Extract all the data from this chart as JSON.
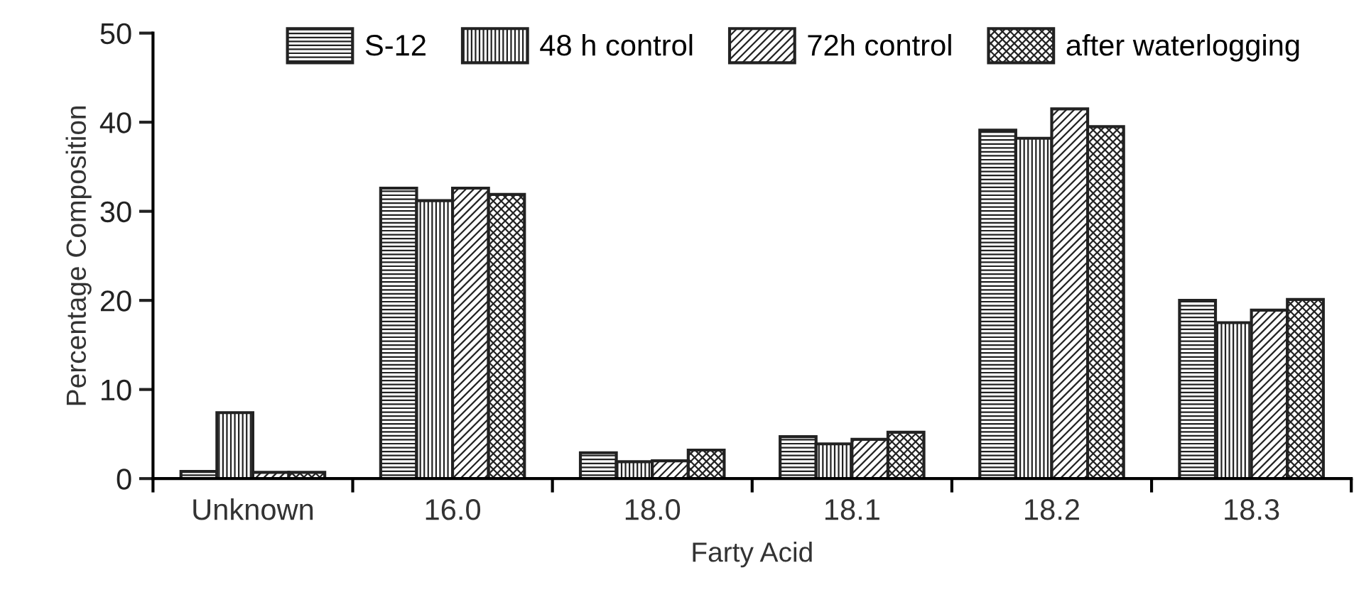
{
  "chart_data": {
    "type": "bar",
    "xlabel": "Farty Acid",
    "ylabel": "Percentage Composition",
    "categories": [
      "Unknown",
      "16.0",
      "18.0",
      "18.1",
      "18.2",
      "18.3"
    ],
    "series": [
      {
        "name": "S-12",
        "color": "#222222",
        "values": [
          0.8,
          32.6,
          2.9,
          4.7,
          39.1,
          20.0
        ]
      },
      {
        "name": "48 h control",
        "color": "#222222",
        "values": [
          7.4,
          31.2,
          1.9,
          3.9,
          38.2,
          17.5
        ]
      },
      {
        "name": "72h control",
        "color": "#222222",
        "values": [
          0.7,
          32.6,
          2.0,
          4.4,
          41.5,
          18.9
        ]
      },
      {
        "name": "after waterlogging",
        "color": "#222222",
        "values": [
          0.7,
          31.9,
          3.2,
          5.2,
          39.5,
          20.1
        ]
      }
    ],
    "ylim": [
      0,
      50
    ],
    "yticks": [
      0,
      10,
      20,
      30,
      40,
      50
    ],
    "grid": false,
    "legend": "top"
  }
}
